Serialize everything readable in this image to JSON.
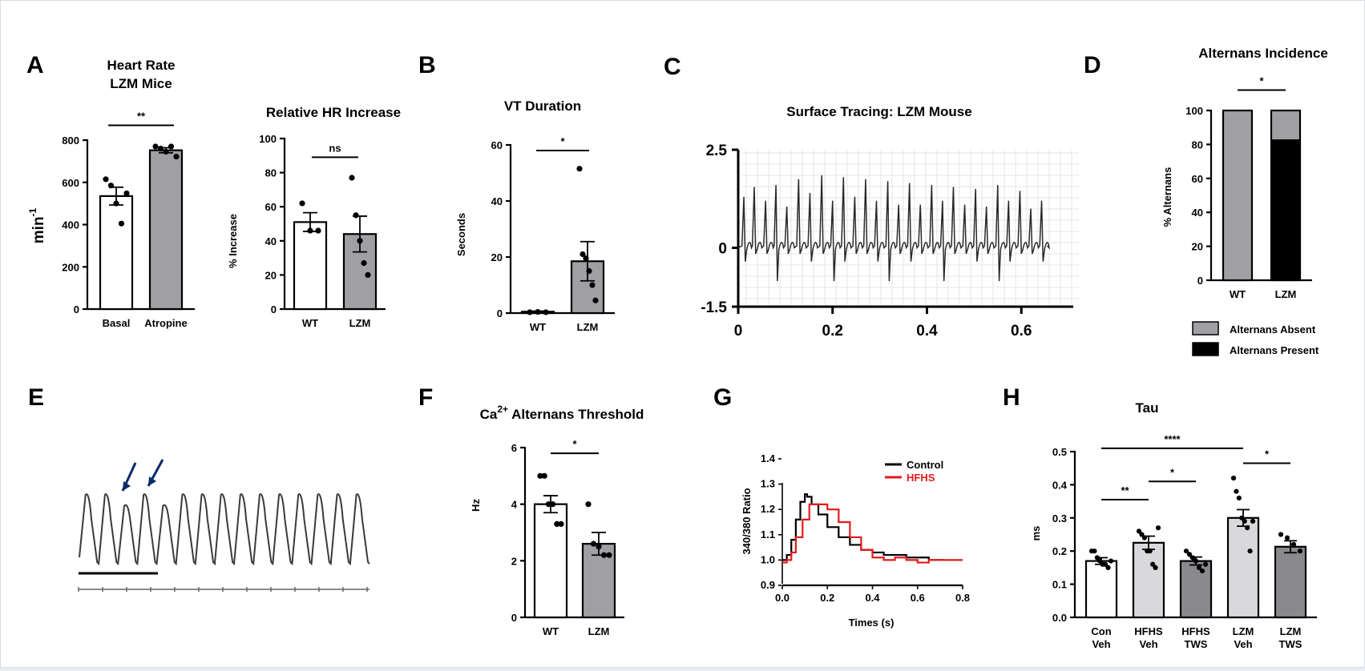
{
  "panels": {
    "A": "A",
    "B": "B",
    "C": "C",
    "D": "D",
    "E": "E",
    "F": "F",
    "G": "G",
    "H": "H"
  },
  "chart_data": [
    {
      "panel": "A-left",
      "type": "bar",
      "title": "Heart Rate",
      "subtitle": "LZM Mice",
      "ylabel": "min-1",
      "ylabel_base": "min",
      "ylabel_sup": "-1",
      "ylim": [
        0,
        800
      ],
      "yticks": [
        0,
        200,
        400,
        600,
        800
      ],
      "categories": [
        "Basal",
        "Atropine"
      ],
      "values": [
        535,
        752
      ],
      "errors": [
        42,
        12
      ],
      "bar_colors": [
        "#ffffff",
        "#a0a0a4"
      ],
      "points": [
        [
          615,
          585,
          500,
          405,
          548
        ],
        [
          770,
          760,
          745,
          770,
          722
        ]
      ],
      "significance": [
        {
          "from": 0,
          "to": 1,
          "label": "**",
          "y": 870
        }
      ]
    },
    {
      "panel": "A-right",
      "type": "bar",
      "title": "Relative  HR Increase",
      "ylabel": "% Increase",
      "ylim": [
        0,
        100
      ],
      "yticks": [
        0,
        20,
        40,
        60,
        80,
        100
      ],
      "categories": [
        "WT",
        "LZM"
      ],
      "values": [
        51,
        44
      ],
      "errors": [
        5.5,
        10.5
      ],
      "bar_colors": [
        "#ffffff",
        "#a0a0a4"
      ],
      "points": [
        [
          62,
          46,
          46
        ],
        [
          77,
          55,
          40,
          27,
          20
        ]
      ],
      "significance": [
        {
          "from": 0,
          "to": 1,
          "label": "ns",
          "y": 89
        }
      ]
    },
    {
      "panel": "B",
      "type": "bar",
      "title": "VT Duration",
      "ylabel": "Seconds",
      "ylim": [
        0,
        60
      ],
      "yticks": [
        0,
        20,
        40,
        60
      ],
      "categories": [
        "WT",
        "LZM"
      ],
      "values": [
        0.5,
        18.5
      ],
      "errors": [
        0.2,
        7
      ],
      "bar_colors": [
        "#ffffff",
        "#a0a0a4"
      ],
      "points": [
        [
          0.3,
          0.4,
          0.3
        ],
        [
          51.5,
          21,
          19.5,
          15,
          10,
          4.5
        ]
      ],
      "significance": [
        {
          "from": 0,
          "to": 1,
          "label": "*",
          "y": 58
        }
      ]
    },
    {
      "panel": "C",
      "type": "line",
      "title": "Surface Tracing: LZM Mouse",
      "xlabel": "",
      "ylabel": "",
      "xlim": [
        0,
        0.71
      ],
      "xticks": [
        0,
        0.2,
        0.4,
        0.6
      ],
      "ylim": [
        -1.5,
        2.5
      ],
      "yticks": [
        -1.5,
        0,
        2.5
      ],
      "ytick_labels": [
        "-1.5",
        "0",
        "2.5"
      ],
      "spike_times": [
        0.012,
        0.034,
        0.058,
        0.08,
        0.103,
        0.128,
        0.152,
        0.177,
        0.2,
        0.223,
        0.247,
        0.27,
        0.293,
        0.317,
        0.34,
        0.363,
        0.386,
        0.41,
        0.433,
        0.456,
        0.48,
        0.503,
        0.526,
        0.55,
        0.573,
        0.597,
        0.62,
        0.643
      ],
      "spike_peaks": [
        1.3,
        1.55,
        1.2,
        1.6,
        1.05,
        1.75,
        1.4,
        1.85,
        1.2,
        1.8,
        1.3,
        1.75,
        1.2,
        1.7,
        1.1,
        1.65,
        1.1,
        1.6,
        1.2,
        1.55,
        1.1,
        1.5,
        1.05,
        1.6,
        1.2,
        1.45,
        1.0,
        1.2
      ]
    },
    {
      "panel": "D",
      "type": "bar",
      "title": "Alternans Incidence",
      "ylabel": "% Alternans",
      "ylim": [
        0,
        100
      ],
      "yticks": [
        0,
        20,
        40,
        60,
        80,
        100
      ],
      "categories": [
        "WT",
        "LZM"
      ],
      "series": [
        {
          "name": "Alternans Absent",
          "values": [
            100,
            17
          ],
          "color": "#a0a0a4"
        },
        {
          "name": "Alternans Present",
          "values": [
            0,
            83
          ],
          "color": "#000000"
        }
      ],
      "legend": "bottom",
      "significance": [
        {
          "from": 0,
          "to": 1,
          "label": "*",
          "y": 112
        }
      ]
    },
    {
      "panel": "F",
      "type": "bar",
      "title": "Ca2+ Alternans Threshold",
      "title_base": "Ca",
      "title_sup": "2+",
      "title_rest": " Alternans Threshold",
      "ylabel": "Hz",
      "ylim": [
        0,
        6
      ],
      "yticks": [
        0,
        2,
        4,
        6
      ],
      "categories": [
        "WT",
        "LZM"
      ],
      "values": [
        4.0,
        2.6
      ],
      "errors": [
        0.3,
        0.4
      ],
      "bar_colors": [
        "#ffffff",
        "#a0a0a4"
      ],
      "points": [
        [
          5.0,
          5.0,
          4.0,
          4.0,
          3.3,
          3.3
        ],
        [
          4.0,
          2.6,
          2.5,
          2.2,
          2.2
        ]
      ],
      "significance": [
        {
          "from": 0,
          "to": 1,
          "label": "*",
          "y": 5.8
        }
      ]
    },
    {
      "panel": "G",
      "type": "line",
      "xlabel": "Times (s)",
      "ylabel": "340/380 Ratio",
      "xlim": [
        0,
        0.8
      ],
      "xticks": [
        0.0,
        0.2,
        0.4,
        0.6,
        0.8
      ],
      "xtick_labels": [
        "0.0",
        "0.2",
        "0.4",
        "0.6",
        "0.8"
      ],
      "ylim": [
        0.9,
        1.4
      ],
      "yticks": [
        0.9,
        1.0,
        1.1,
        1.2,
        1.3,
        1.4
      ],
      "ytick_labels": [
        "0.9",
        "1.0",
        "1.1",
        "1.2",
        "1.3",
        "1.4"
      ],
      "legend": "top-right",
      "series": [
        {
          "name": "Control",
          "color": "#000000",
          "x": [
            0,
            0.01,
            0.02,
            0.04,
            0.06,
            0.08,
            0.1,
            0.11,
            0.13,
            0.16,
            0.2,
            0.25,
            0.3,
            0.35,
            0.4,
            0.45,
            0.5,
            0.55,
            0.6,
            0.65,
            0.7,
            0.72
          ],
          "y": [
            1.0,
            1.0,
            1.02,
            1.08,
            1.16,
            1.23,
            1.26,
            1.25,
            1.22,
            1.18,
            1.13,
            1.09,
            1.06,
            1.04,
            1.03,
            1.02,
            1.02,
            1.01,
            1.01,
            1.0,
            1.0,
            1.0
          ]
        },
        {
          "name": "HFHS",
          "color": "#e31a1c",
          "x": [
            0,
            0.02,
            0.04,
            0.06,
            0.09,
            0.12,
            0.15,
            0.2,
            0.25,
            0.3,
            0.35,
            0.4,
            0.45,
            0.5,
            0.55,
            0.6,
            0.65,
            0.7,
            0.75,
            0.8
          ],
          "y": [
            0.99,
            1.0,
            1.03,
            1.09,
            1.16,
            1.22,
            1.22,
            1.2,
            1.15,
            1.09,
            1.04,
            1.01,
            1.0,
            1.01,
            1.0,
            0.99,
            1.0,
            1.0,
            1.0,
            1.0
          ]
        }
      ]
    },
    {
      "panel": "H",
      "type": "bar",
      "title": "Tau",
      "ylabel": "ms",
      "ylim": [
        0,
        0.5
      ],
      "yticks": [
        0.0,
        0.1,
        0.2,
        0.3,
        0.4,
        0.5
      ],
      "ytick_labels": [
        "0.0",
        "0.1",
        "0.2",
        "0.3",
        "0.4",
        "0.5"
      ],
      "categories": [
        [
          "Con",
          "Veh"
        ],
        [
          "HFHS",
          "Veh"
        ],
        [
          "HFHS",
          "TWS"
        ],
        [
          "LZM",
          "Veh"
        ],
        [
          "LZM",
          "TWS"
        ]
      ],
      "values": [
        0.17,
        0.225,
        0.17,
        0.3,
        0.213
      ],
      "errors": [
        0.01,
        0.02,
        0.012,
        0.025,
        0.018
      ],
      "bar_colors": [
        "#ffffff",
        "#d9d9db",
        "#8a8a8e",
        "#d9d9db",
        "#8a8a8e"
      ],
      "points": [
        [
          0.2,
          0.2,
          0.18,
          0.17,
          0.16,
          0.16,
          0.15,
          0.17
        ],
        [
          0.26,
          0.25,
          0.24,
          0.2,
          0.2,
          0.16,
          0.15,
          0.27
        ],
        [
          0.2,
          0.19,
          0.18,
          0.17,
          0.15,
          0.14,
          0.16
        ],
        [
          0.42,
          0.38,
          0.36,
          0.3,
          0.29,
          0.27,
          0.2,
          0.29
        ],
        [
          0.25,
          0.24,
          0.22,
          0.2
        ]
      ],
      "significance": [
        {
          "from": 0,
          "to": 1,
          "label": "**",
          "y": 0.355
        },
        {
          "from": 1,
          "to": 2,
          "label": "*",
          "y": 0.41
        },
        {
          "from": 0,
          "to": 3,
          "label": "****",
          "y": 0.51
        },
        {
          "from": 3,
          "to": 4,
          "label": "*",
          "y": 0.465
        }
      ]
    }
  ],
  "trace_E": {
    "beats": 15,
    "arrows": 2
  }
}
